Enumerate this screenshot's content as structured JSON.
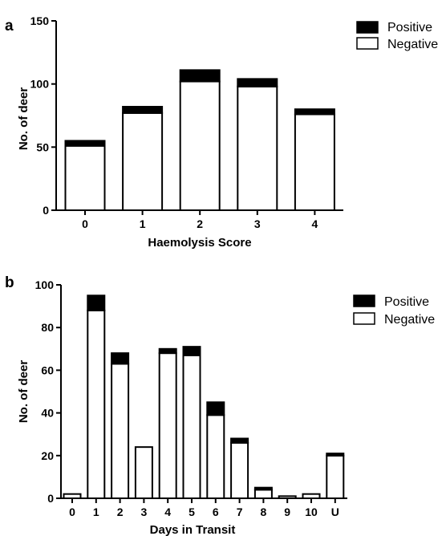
{
  "chart_data": [
    {
      "type": "bar",
      "panel_label": "a",
      "stacked": true,
      "xlabel": "Haemolysis Score",
      "ylabel": "No. of deer",
      "ylim": [
        0,
        150
      ],
      "yticks": [
        0,
        50,
        100,
        150
      ],
      "categories": [
        "0",
        "1",
        "2",
        "3",
        "4"
      ],
      "series": [
        {
          "name": "Negative",
          "color": "#ffffff",
          "values": [
            51,
            77,
            102,
            98,
            76
          ]
        },
        {
          "name": "Positive",
          "color": "#000000",
          "values": [
            4,
            5,
            9,
            6,
            4
          ]
        }
      ],
      "legend_position": "top-right"
    },
    {
      "type": "bar",
      "panel_label": "b",
      "stacked": true,
      "xlabel": "Days in Transit",
      "ylabel": "No. of deer",
      "ylim": [
        0,
        100
      ],
      "yticks": [
        0,
        20,
        40,
        60,
        80,
        100
      ],
      "categories": [
        "0",
        "1",
        "2",
        "3",
        "4",
        "5",
        "6",
        "7",
        "8",
        "9",
        "10",
        "U"
      ],
      "series": [
        {
          "name": "Negative",
          "color": "#ffffff",
          "values": [
            2,
            88,
            63,
            24,
            68,
            67,
            39,
            26,
            4,
            1,
            2,
            20
          ]
        },
        {
          "name": "Positive",
          "color": "#000000",
          "values": [
            0,
            7,
            5,
            0,
            2,
            4,
            6,
            2,
            1,
            0,
            0,
            1
          ]
        }
      ],
      "legend_position": "top-right"
    }
  ]
}
